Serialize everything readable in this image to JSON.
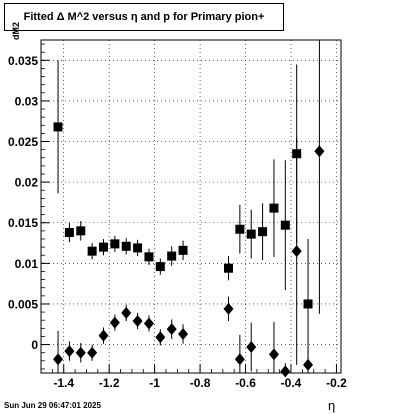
{
  "chart_data": {
    "type": "scatter",
    "title": "Fitted Δ M^2 versus η and p for Primary pion+",
    "xlabel": "η",
    "ylabel": "dM2",
    "xlim": [
      -1.5,
      -0.18
    ],
    "ylim": [
      -0.0035,
      0.0375
    ],
    "x_ticks": [
      -1.4,
      -1.2,
      -1.0,
      -0.8,
      -0.6,
      -0.4,
      -0.2
    ],
    "x_tick_labels": [
      "-1.4",
      "-1.2",
      "-1",
      "-0.8",
      "-0.6",
      "-0.4",
      "-0.2"
    ],
    "y_ticks": [
      0,
      0.005,
      0.01,
      0.015,
      0.02,
      0.025,
      0.03,
      0.035
    ],
    "y_tick_labels": [
      "0",
      "0.005",
      "0.01",
      "0.015",
      "0.02",
      "0.025",
      "0.03",
      "0.035"
    ],
    "grid": true,
    "series": [
      {
        "marker": "square",
        "points": [
          {
            "x": -1.425,
            "y": 0.0268,
            "err": 0.0082
          },
          {
            "x": -1.375,
            "y": 0.0138,
            "err": 0.0012
          },
          {
            "x": -1.325,
            "y": 0.014,
            "err": 0.0012
          },
          {
            "x": -1.275,
            "y": 0.0115,
            "err": 0.001
          },
          {
            "x": -1.225,
            "y": 0.012,
            "err": 0.001
          },
          {
            "x": -1.175,
            "y": 0.0124,
            "err": 0.001
          },
          {
            "x": -1.125,
            "y": 0.0121,
            "err": 0.001
          },
          {
            "x": -1.075,
            "y": 0.0119,
            "err": 0.001
          },
          {
            "x": -1.025,
            "y": 0.0108,
            "err": 0.001
          },
          {
            "x": -0.975,
            "y": 0.0096,
            "err": 0.001
          },
          {
            "x": -0.925,
            "y": 0.0109,
            "err": 0.0012
          },
          {
            "x": -0.875,
            "y": 0.0116,
            "err": 0.0012
          },
          {
            "x": -0.675,
            "y": 0.0094,
            "err": 0.0015
          },
          {
            "x": -0.625,
            "y": 0.0142,
            "err": 0.003
          },
          {
            "x": -0.575,
            "y": 0.0136,
            "err": 0.003
          },
          {
            "x": -0.525,
            "y": 0.0139,
            "err": 0.0035
          },
          {
            "x": -0.475,
            "y": 0.0168,
            "err": 0.006
          },
          {
            "x": -0.425,
            "y": 0.0147,
            "err": 0.008
          },
          {
            "x": -0.375,
            "y": 0.0235,
            "err": 0.011
          },
          {
            "x": -0.325,
            "y": 0.005,
            "err": 0.008
          }
        ]
      },
      {
        "marker": "diamond",
        "points": [
          {
            "x": -1.425,
            "y": -0.0018,
            "err": 0.0035
          },
          {
            "x": -1.375,
            "y": -0.0008,
            "err": 0.0012
          },
          {
            "x": -1.325,
            "y": -0.001,
            "err": 0.0012
          },
          {
            "x": -1.275,
            "y": -0.001,
            "err": 0.001
          },
          {
            "x": -1.225,
            "y": 0.0011,
            "err": 0.001
          },
          {
            "x": -1.175,
            "y": 0.0027,
            "err": 0.001
          },
          {
            "x": -1.125,
            "y": 0.0039,
            "err": 0.001
          },
          {
            "x": -1.075,
            "y": 0.0029,
            "err": 0.001
          },
          {
            "x": -1.025,
            "y": 0.0026,
            "err": 0.001
          },
          {
            "x": -0.975,
            "y": 0.0009,
            "err": 0.001
          },
          {
            "x": -0.925,
            "y": 0.0019,
            "err": 0.0012
          },
          {
            "x": -0.875,
            "y": 0.0013,
            "err": 0.0012
          },
          {
            "x": -0.675,
            "y": 0.0044,
            "err": 0.0015
          },
          {
            "x": -0.625,
            "y": -0.0018,
            "err": 0.003
          },
          {
            "x": -0.575,
            "y": -0.0003,
            "err": 0.003
          },
          {
            "x": -0.475,
            "y": -0.0012,
            "err": 0.004
          },
          {
            "x": -0.425,
            "y": -0.0033,
            "err": 0.001
          },
          {
            "x": -0.375,
            "y": 0.0115,
            "err": 0.014
          },
          {
            "x": -0.325,
            "y": -0.0025,
            "err": 0.002
          },
          {
            "x": -0.275,
            "y": 0.0238,
            "err": 0.02
          }
        ]
      }
    ]
  },
  "footer": {
    "timestamp": "Sun Jun 29 06:47:01 2025"
  }
}
